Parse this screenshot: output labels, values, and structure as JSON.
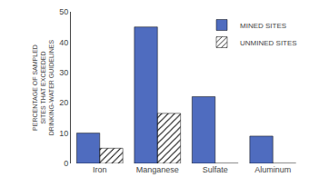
{
  "chart_data": {
    "type": "bar",
    "categories": [
      "Iron",
      "Manganese",
      "Sulfate",
      "Aluminum"
    ],
    "series": [
      {
        "name": "MINED SITES",
        "color": "#4F6CBF",
        "values": [
          10,
          45,
          22,
          9
        ]
      },
      {
        "name": "UNMINED SITES",
        "color": "#FFFFEE",
        "values": [
          5,
          16.5,
          0,
          0
        ]
      }
    ],
    "ylabel": "PERCENTAGE OF SAMPLED\nSITES THAT EXCEEDED\nDRINKING-WATER GUIDELINES",
    "ylim": [
      0,
      50
    ],
    "yticks": [
      0,
      10,
      20,
      30,
      40,
      50
    ],
    "grid": false,
    "legend": "upper right"
  }
}
